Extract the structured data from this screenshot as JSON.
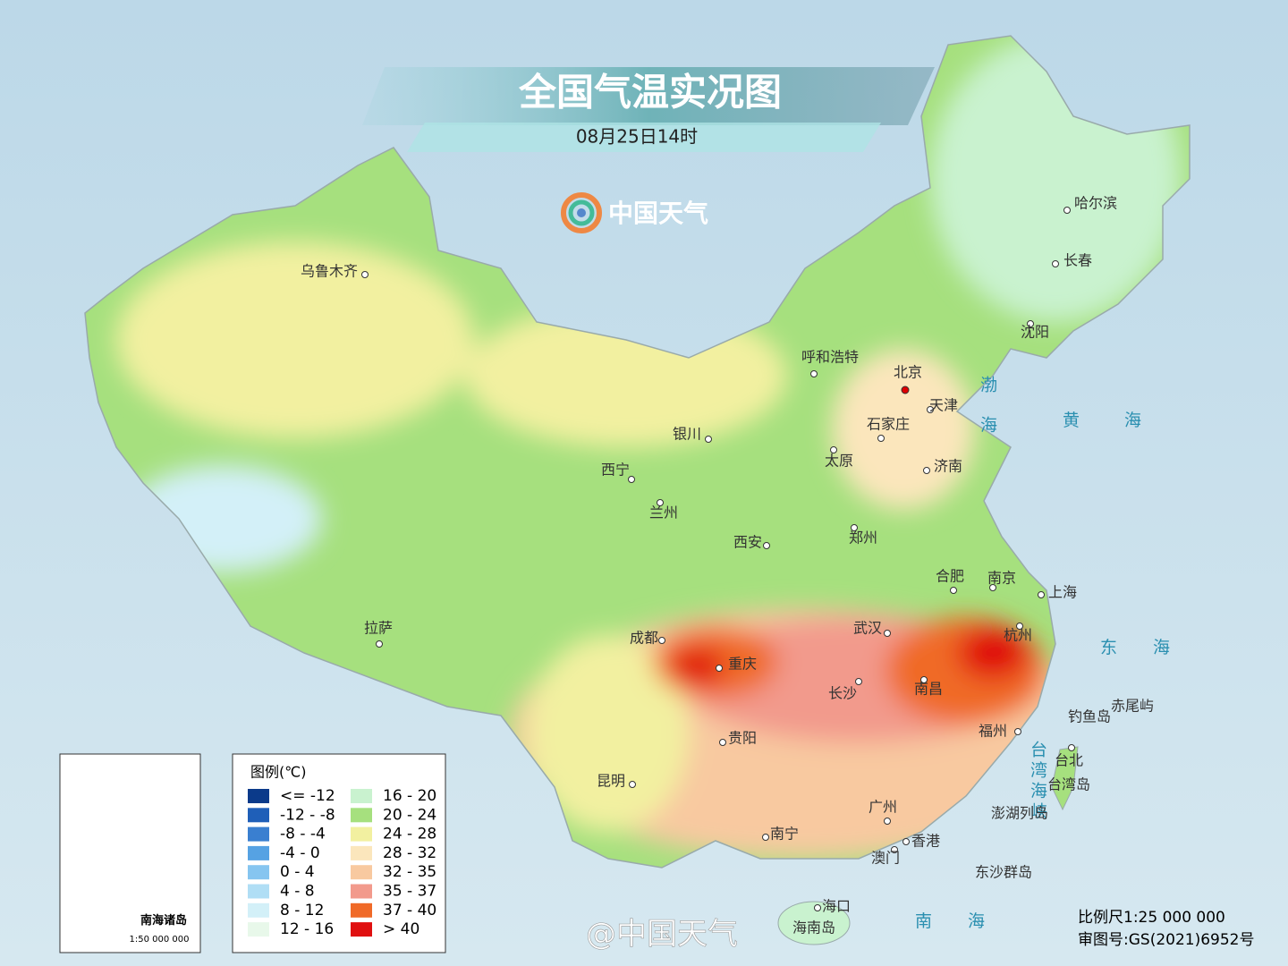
{
  "header": {
    "title": "全国气温实况图",
    "subtitle": "08月25日14时"
  },
  "brand": "中国天气",
  "cities": [
    "乌鲁木齐",
    "呼和浩特",
    "北京",
    "天津",
    "石家庄",
    "太原",
    "济南",
    "银川",
    "西宁",
    "兰州",
    "西安",
    "郑州",
    "合肥",
    "南京",
    "上海",
    "杭州",
    "武汉",
    "成都",
    "重庆",
    "长沙",
    "南昌",
    "贵阳",
    "福州",
    "台北",
    "昆明",
    "南宁",
    "广州",
    "香港",
    "澳门",
    "海口",
    "拉萨",
    "哈尔滨",
    "长春",
    "沈阳"
  ],
  "sea_labels": [
    "渤海",
    "黄海",
    "东海",
    "南海",
    "台湾海峡"
  ],
  "island_labels": [
    "钓鱼岛",
    "赤尾屿",
    "台湾岛",
    "澎湖列岛",
    "东沙群岛",
    "海南岛"
  ],
  "legend": {
    "title": "图例(℃)",
    "items": [
      {
        "label": "<= -12",
        "color": "#0b3a8a"
      },
      {
        "label": "-12 - -8",
        "color": "#1f5fb8"
      },
      {
        "label": "-8 - -4",
        "color": "#3a7fd0"
      },
      {
        "label": "-4 - 0",
        "color": "#56a2e3"
      },
      {
        "label": "0 - 4",
        "color": "#86c5f0"
      },
      {
        "label": "4 - 8",
        "color": "#b0def5"
      },
      {
        "label": "8 - 12",
        "color": "#d3f0f8"
      },
      {
        "label": "12 - 16",
        "color": "#e8f8ea"
      },
      {
        "label": "16 - 20",
        "color": "#c9f2cf"
      },
      {
        "label": "20 - 24",
        "color": "#a6e07e"
      },
      {
        "label": "24 - 28",
        "color": "#f2f0a0"
      },
      {
        "label": "28 - 32",
        "color": "#fbe6bc"
      },
      {
        "label": "32 - 35",
        "color": "#f8c9a0"
      },
      {
        "label": "35 - 37",
        "color": "#f29a8c"
      },
      {
        "label": "37 - 40",
        "color": "#f06a28"
      },
      {
        "label": "> 40",
        "color": "#e01010"
      }
    ]
  },
  "inset": {
    "title": "南海诸岛",
    "scale": "1:50 000 000"
  },
  "footer": {
    "scale": "比例尺1:25 000 000",
    "approval": "审图号:GS(2021)6952号",
    "watermark": "@中国天气"
  }
}
